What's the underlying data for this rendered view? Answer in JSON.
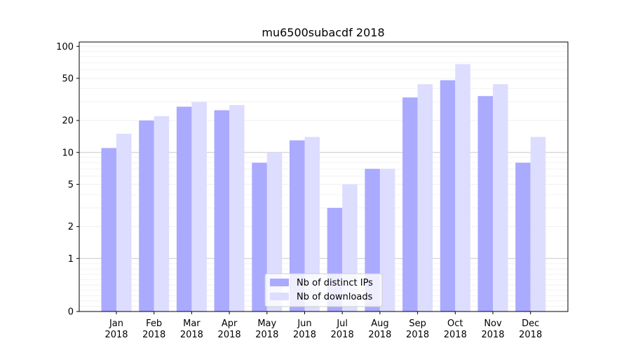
{
  "chart_data": {
    "type": "bar",
    "title": "mu6500subacdf 2018",
    "xlabel": "",
    "ylabel": "",
    "y_scale": "symlog",
    "y_ticks": [
      "0",
      "1",
      "2",
      "5",
      "10",
      "20",
      "50",
      "100"
    ],
    "ylim": [
      0,
      110
    ],
    "grid": "horizontal",
    "legend_position": "bottom-center",
    "categories": [
      [
        "Jan",
        "2018"
      ],
      [
        "Feb",
        "2018"
      ],
      [
        "Mar",
        "2018"
      ],
      [
        "Apr",
        "2018"
      ],
      [
        "May",
        "2018"
      ],
      [
        "Jun",
        "2018"
      ],
      [
        "Jul",
        "2018"
      ],
      [
        "Aug",
        "2018"
      ],
      [
        "Sep",
        "2018"
      ],
      [
        "Oct",
        "2018"
      ],
      [
        "Nov",
        "2018"
      ],
      [
        "Dec",
        "2018"
      ]
    ],
    "series": [
      {
        "name": "Nb of distinct IPs",
        "color": "#aaaaff",
        "values": [
          11,
          20,
          27,
          25,
          8,
          13,
          3,
          7,
          33,
          48,
          34,
          8
        ]
      },
      {
        "name": "Nb of downloads",
        "color": "#ddddff",
        "values": [
          15,
          22,
          30,
          28,
          10,
          14,
          5,
          7,
          44,
          68,
          44,
          14
        ]
      }
    ]
  }
}
